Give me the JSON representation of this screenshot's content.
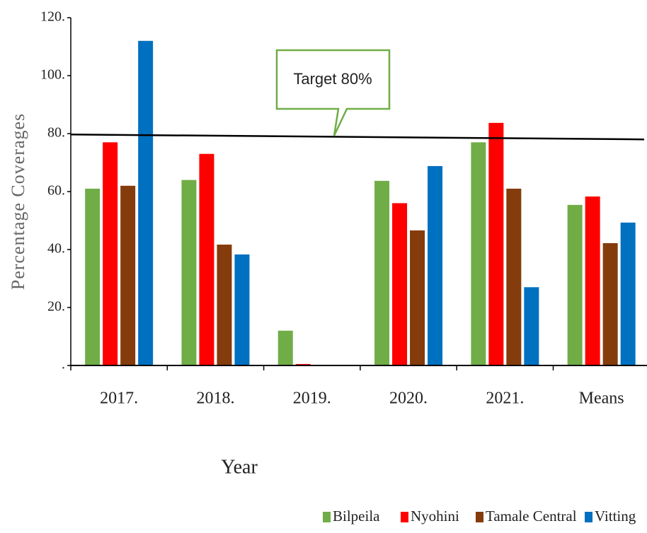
{
  "chart_data": {
    "type": "bar",
    "x_label": "Year",
    "y_label": "Percentage Coverages",
    "categories": [
      "2017.",
      "2018.",
      "2019.",
      "2020.",
      "2021.",
      "Means"
    ],
    "series": [
      {
        "name": "Bilpeila",
        "color": "#70ad47",
        "values": [
          61,
          64,
          12,
          63.7,
          77,
          55.4
        ]
      },
      {
        "name": "Nyohini",
        "color": "#ff0000",
        "values": [
          77,
          73,
          0.5,
          56,
          83.7,
          58.3
        ]
      },
      {
        "name": "Tamale Central",
        "color": "#843c0c",
        "values": [
          62,
          41.7,
          0,
          46.6,
          61,
          42.2
        ]
      },
      {
        "name": "Vitting",
        "color": "#0070c0",
        "values": [
          112,
          38.3,
          0,
          68.8,
          27,
          49.3
        ]
      }
    ],
    "ylim": [
      0,
      120
    ],
    "yticks": [
      {
        "value": 0,
        "label": "."
      },
      {
        "value": 20,
        "label": "20."
      },
      {
        "value": 40,
        "label": "40."
      },
      {
        "value": 60,
        "label": "60."
      },
      {
        "value": 80,
        "label": "80."
      },
      {
        "value": 100,
        "label": "100."
      },
      {
        "value": 120,
        "label": "120."
      }
    ],
    "target_line": {
      "start": 79.7,
      "end": 78.0
    },
    "annotation": "Target 80%",
    "legend": "bottom"
  }
}
